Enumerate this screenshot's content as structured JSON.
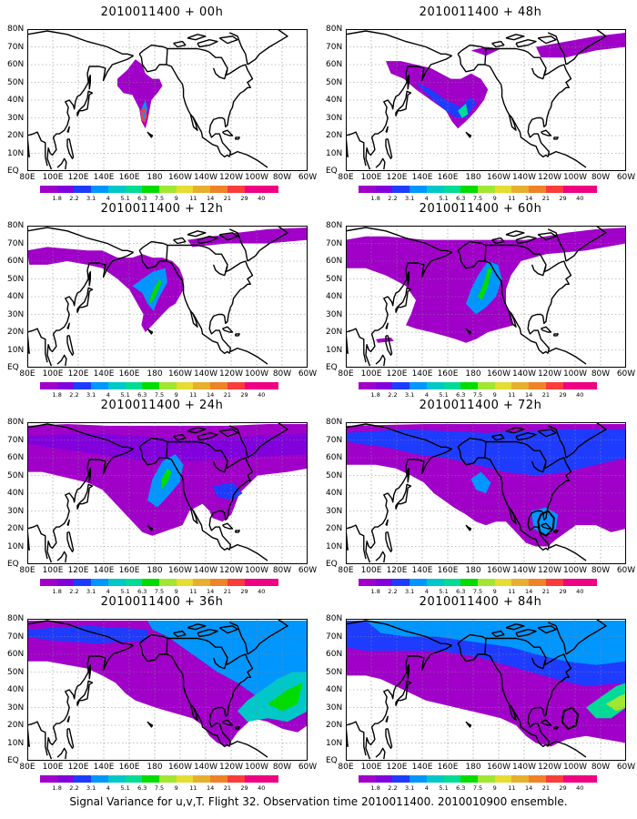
{
  "caption": "Signal Variance for u,v,T. Flight 32. Observation time 2010011400. 2010010900 ensemble.",
  "y_labels": [
    "80N",
    "70N",
    "60N",
    "50N",
    "40N",
    "30N",
    "20N",
    "10N",
    "EQ"
  ],
  "x_labels": [
    "80E",
    "100E",
    "120E",
    "140E",
    "160E",
    "180",
    "160W",
    "140W",
    "120W",
    "100W",
    "80W",
    "60W"
  ],
  "colorbar": {
    "labels": [
      "1.8",
      "2.2",
      "3.1",
      "4",
      "5.1",
      "6.3",
      "7.5",
      "9",
      "11",
      "14",
      "21",
      "29",
      "40"
    ],
    "colors": [
      "#a000c8",
      "#8200dc",
      "#1e3cff",
      "#0096ff",
      "#00c8c8",
      "#00dc96",
      "#00dc00",
      "#a0e632",
      "#e6dc32",
      "#e6af2d",
      "#f08228",
      "#fa3c3c",
      "#f00082"
    ]
  },
  "panels": [
    {
      "title": "2010011400 + 00h"
    },
    {
      "title": "2010011400 + 48h"
    },
    {
      "title": "2010011400 + 12h"
    },
    {
      "title": "2010011400 + 60h"
    },
    {
      "title": "2010011400 + 24h"
    },
    {
      "title": "2010011400 + 72h"
    },
    {
      "title": "2010011400 + 36h"
    },
    {
      "title": "2010011400 + 84h"
    }
  ]
}
